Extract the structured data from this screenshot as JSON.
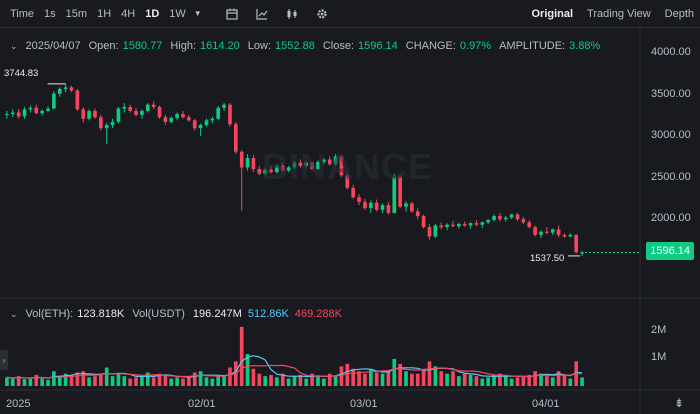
{
  "toolbar": {
    "intervals": [
      "Time",
      "1s",
      "15m",
      "1H",
      "4H",
      "1D",
      "1W"
    ],
    "active_interval": "1D",
    "icons": [
      "calendar-icon",
      "indicator-icon",
      "candle-type-icon",
      "settings-icon"
    ],
    "views": [
      "Original",
      "Trading View",
      "Depth"
    ],
    "active_view": "Original"
  },
  "ohlc": {
    "date": "2025/04/07",
    "open_label": "Open:",
    "open": "1580.77",
    "high_label": "High:",
    "high": "1614.20",
    "low_label": "Low:",
    "low": "1552.88",
    "close_label": "Close:",
    "close": "1596.14",
    "change_label": "CHANGE:",
    "change": "0.97%",
    "amplitude_label": "AMPLITUDE:",
    "amplitude": "3.88%"
  },
  "volume": {
    "eth_label": "Vol(ETH):",
    "eth": "123.818K",
    "usdt_label": "Vol(USDT)",
    "usdt": "196.247M",
    "ma1": "512.86K",
    "ma2": "469.288K",
    "axis": [
      "2M",
      "1M"
    ]
  },
  "price_axis": [
    "4000.00",
    "3500.00",
    "3000.00",
    "2500.00",
    "2000.00"
  ],
  "time_axis": [
    "2025",
    "02/01",
    "03/01",
    "04/01"
  ],
  "current_price": "1596.14",
  "high_marker": "3744.83",
  "low_marker": "1537.50",
  "watermark": "BINANCE",
  "colors": {
    "up": "#0ecb81",
    "down": "#f6465d",
    "bg": "#181a20",
    "ma1": "#5ac8fa",
    "ma2": "#f6465d"
  },
  "chart_data": {
    "type": "candlestick",
    "ylim": [
      1500,
      4100
    ],
    "x_labels": [
      "2025",
      "02/01",
      "03/01",
      "04/01"
    ],
    "candles": [
      [
        3350,
        3400,
        3300,
        3360
      ],
      [
        3360,
        3420,
        3320,
        3380
      ],
      [
        3380,
        3420,
        3300,
        3330
      ],
      [
        3330,
        3450,
        3300,
        3420
      ],
      [
        3420,
        3470,
        3380,
        3440
      ],
      [
        3440,
        3480,
        3360,
        3370
      ],
      [
        3370,
        3420,
        3340,
        3400
      ],
      [
        3400,
        3460,
        3380,
        3430
      ],
      [
        3430,
        3650,
        3420,
        3620
      ],
      [
        3620,
        3700,
        3580,
        3680
      ],
      [
        3680,
        3744,
        3640,
        3700
      ],
      [
        3700,
        3720,
        3640,
        3660
      ],
      [
        3660,
        3680,
        3400,
        3420
      ],
      [
        3420,
        3450,
        3250,
        3300
      ],
      [
        3300,
        3420,
        3280,
        3400
      ],
      [
        3400,
        3430,
        3300,
        3320
      ],
      [
        3320,
        3350,
        3150,
        3180
      ],
      [
        3180,
        3250,
        2980,
        3220
      ],
      [
        3220,
        3300,
        3180,
        3260
      ],
      [
        3260,
        3450,
        3240,
        3430
      ],
      [
        3430,
        3500,
        3380,
        3450
      ],
      [
        3450,
        3480,
        3380,
        3400
      ],
      [
        3400,
        3440,
        3330,
        3350
      ],
      [
        3350,
        3420,
        3300,
        3400
      ],
      [
        3400,
        3500,
        3380,
        3480
      ],
      [
        3480,
        3520,
        3420,
        3450
      ],
      [
        3450,
        3470,
        3300,
        3320
      ],
      [
        3320,
        3350,
        3220,
        3260
      ],
      [
        3260,
        3330,
        3240,
        3310
      ],
      [
        3310,
        3380,
        3280,
        3360
      ],
      [
        3360,
        3400,
        3300,
        3320
      ],
      [
        3320,
        3350,
        3260,
        3280
      ],
      [
        3280,
        3300,
        3150,
        3180
      ],
      [
        3180,
        3240,
        3080,
        3220
      ],
      [
        3220,
        3300,
        3200,
        3280
      ],
      [
        3280,
        3330,
        3240,
        3300
      ],
      [
        3300,
        3460,
        3280,
        3440
      ],
      [
        3440,
        3500,
        3400,
        3480
      ],
      [
        3480,
        3500,
        3200,
        3230
      ],
      [
        3230,
        3260,
        2850,
        2880
      ],
      [
        2880,
        2900,
        2130,
        2680
      ],
      [
        2680,
        2850,
        2640,
        2800
      ],
      [
        2800,
        2840,
        2620,
        2660
      ],
      [
        2660,
        2700,
        2580,
        2600
      ],
      [
        2600,
        2680,
        2560,
        2650
      ],
      [
        2650,
        2700,
        2600,
        2620
      ],
      [
        2620,
        2720,
        2600,
        2700
      ],
      [
        2700,
        2740,
        2620,
        2640
      ],
      [
        2640,
        2700,
        2620,
        2680
      ],
      [
        2680,
        2760,
        2660,
        2740
      ],
      [
        2740,
        2780,
        2680,
        2700
      ],
      [
        2700,
        2760,
        2670,
        2740
      ],
      [
        2740,
        2760,
        2640,
        2660
      ],
      [
        2660,
        2770,
        2650,
        2750
      ],
      [
        2750,
        2800,
        2720,
        2780
      ],
      [
        2780,
        2820,
        2700,
        2720
      ],
      [
        2720,
        2850,
        2700,
        2820
      ],
      [
        2820,
        2840,
        2560,
        2580
      ],
      [
        2580,
        2600,
        2400,
        2420
      ],
      [
        2420,
        2460,
        2280,
        2300
      ],
      [
        2300,
        2340,
        2200,
        2240
      ],
      [
        2240,
        2280,
        2140,
        2160
      ],
      [
        2160,
        2260,
        2100,
        2230
      ],
      [
        2230,
        2270,
        2120,
        2140
      ],
      [
        2140,
        2220,
        2100,
        2200
      ],
      [
        2200,
        2240,
        2080,
        2100
      ],
      [
        2100,
        2600,
        2090,
        2560
      ],
      [
        2560,
        2580,
        2160,
        2180
      ],
      [
        2180,
        2250,
        2120,
        2220
      ],
      [
        2220,
        2240,
        2100,
        2120
      ],
      [
        2120,
        2160,
        2020,
        2060
      ],
      [
        2060,
        2080,
        1900,
        1920
      ],
      [
        1920,
        1960,
        1760,
        1800
      ],
      [
        1800,
        1960,
        1780,
        1940
      ],
      [
        1940,
        1980,
        1890,
        1920
      ],
      [
        1920,
        1970,
        1880,
        1950
      ],
      [
        1950,
        2000,
        1920,
        1930
      ],
      [
        1930,
        1970,
        1900,
        1960
      ],
      [
        1960,
        1990,
        1920,
        1940
      ],
      [
        1940,
        1980,
        1900,
        1970
      ],
      [
        1970,
        2010,
        1930,
        1950
      ],
      [
        1950,
        1990,
        1910,
        1980
      ],
      [
        1980,
        2020,
        1960,
        2010
      ],
      [
        2010,
        2080,
        1990,
        2060
      ],
      [
        2060,
        2100,
        1990,
        2020
      ],
      [
        2020,
        2060,
        1990,
        2040
      ],
      [
        2040,
        2090,
        2020,
        2080
      ],
      [
        2080,
        2100,
        2000,
        2020
      ],
      [
        2020,
        2050,
        1960,
        1980
      ],
      [
        1980,
        2010,
        1900,
        1920
      ],
      [
        1920,
        1940,
        1800,
        1820
      ],
      [
        1820,
        1880,
        1780,
        1860
      ],
      [
        1860,
        1920,
        1830,
        1850
      ],
      [
        1850,
        1900,
        1820,
        1890
      ],
      [
        1890,
        1940,
        1790,
        1820
      ],
      [
        1820,
        1840,
        1780,
        1800
      ],
      [
        1800,
        1840,
        1790,
        1820
      ],
      [
        1820,
        1830,
        1580,
        1600
      ],
      [
        1580,
        1614,
        1552,
        1596
      ]
    ],
    "volume": [
      0.35,
      0.3,
      0.4,
      0.28,
      0.3,
      0.45,
      0.3,
      0.25,
      0.6,
      0.4,
      0.5,
      0.45,
      0.55,
      0.6,
      0.35,
      0.4,
      0.5,
      0.75,
      0.4,
      0.5,
      0.4,
      0.3,
      0.35,
      0.4,
      0.55,
      0.35,
      0.5,
      0.45,
      0.3,
      0.35,
      0.3,
      0.4,
      0.55,
      0.6,
      0.35,
      0.3,
      0.4,
      0.45,
      0.75,
      1.0,
      2.4,
      1.3,
      0.7,
      0.5,
      0.4,
      0.45,
      0.35,
      0.5,
      0.3,
      0.4,
      0.45,
      0.3,
      0.5,
      0.4,
      0.3,
      0.5,
      0.4,
      0.8,
      0.9,
      0.7,
      0.6,
      0.5,
      0.7,
      0.55,
      0.5,
      0.6,
      1.1,
      0.9,
      0.6,
      0.5,
      0.5,
      0.7,
      1.0,
      0.8,
      0.6,
      0.5,
      0.6,
      0.4,
      0.5,
      0.45,
      0.4,
      0.3,
      0.35,
      0.45,
      0.5,
      0.4,
      0.3,
      0.35,
      0.4,
      0.45,
      0.6,
      0.5,
      0.4,
      0.35,
      0.6,
      0.45,
      0.3,
      1.0,
      0.35
    ]
  }
}
